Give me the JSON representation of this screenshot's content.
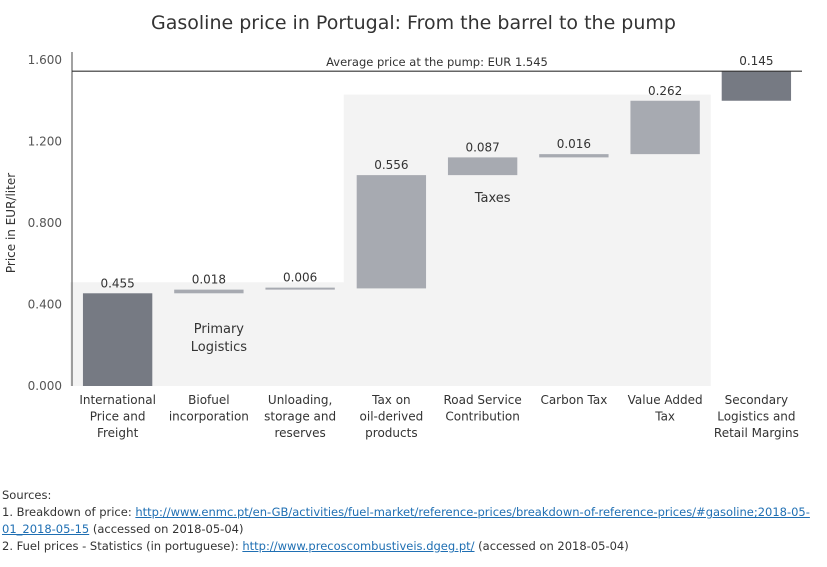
{
  "chart_data": {
    "type": "bar",
    "subtype": "waterfall",
    "title": "Gasoline price in Portugal: From the barrel to the pump",
    "ylabel": "Price in EUR/liter",
    "xlabel": "",
    "ylim": [
      0,
      1.6
    ],
    "yticks": [
      "0.000",
      "0.400",
      "0.800",
      "1.200",
      "1.600"
    ],
    "grid": false,
    "categories": [
      "International Price and Freight",
      "Biofuel incorporation",
      "Unloading, storage and reserves",
      "Tax on oil-derived products",
      "Road Service Contribution",
      "Carbon Tax",
      "Value Added Tax",
      "Secondary Logistics and Retail Margins"
    ],
    "category_lines": [
      [
        "International",
        "Price and",
        "Freight"
      ],
      [
        "Biofuel",
        "incorporation"
      ],
      [
        "Unloading,",
        "storage and",
        "reserves"
      ],
      [
        "Tax on",
        "oil-derived",
        "products"
      ],
      [
        "Road Service",
        "Contribution"
      ],
      [
        "Carbon Tax"
      ],
      [
        "Value Added",
        "Tax"
      ],
      [
        "Secondary",
        "Logistics and",
        "Retail Margins"
      ]
    ],
    "values": [
      0.455,
      0.018,
      0.006,
      0.556,
      0.087,
      0.016,
      0.262,
      0.145
    ],
    "value_labels": [
      "0.455",
      "0.018",
      "0.006",
      "0.556",
      "0.087",
      "0.016",
      "0.262",
      "0.145"
    ],
    "groups": [
      {
        "label_lines": [
          "Primary",
          "Logistics"
        ],
        "from": 0,
        "to": 2
      },
      {
        "label_lines": [
          "Taxes"
        ],
        "from": 3,
        "to": 6
      }
    ],
    "reference_line": {
      "value": 1.545,
      "label": "Average price at the pump: EUR 1.545"
    },
    "colors": {
      "dark": "#767a83",
      "light": "#a7aab1",
      "band": "#f3f3f3",
      "axis": "#444444"
    },
    "dark_bars": [
      0,
      7
    ]
  },
  "sources": {
    "heading": "Sources:",
    "line1_prefix": "1. Breakdown of price: ",
    "line1_link": "http://www.enmc.pt/en-GB/activities/fuel-market/reference-prices/breakdown-of-reference-prices/#gasoline;2018-05-01_2018-05-15",
    "line1_suffix": " (accessed on 2018-05-04)",
    "line2_prefix": "2. Fuel prices - Statistics (in portuguese): ",
    "line2_link": "http://www.precoscombustiveis.dgeg.pt/",
    "line2_suffix": " (accessed on 2018-05-04)"
  }
}
